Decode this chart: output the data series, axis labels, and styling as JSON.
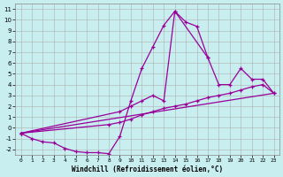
{
  "title": "",
  "xlabel": "Windchill (Refroidissement éolien,°C)",
  "ylabel": "",
  "bg_color": "#c8eef0",
  "grid_color": "#b0b0b0",
  "line_color": "#990099",
  "xlim": [
    -0.5,
    23.5
  ],
  "ylim": [
    -2.5,
    11.5
  ],
  "xticks": [
    0,
    1,
    2,
    3,
    4,
    5,
    6,
    7,
    8,
    9,
    10,
    11,
    12,
    13,
    14,
    15,
    16,
    17,
    18,
    19,
    20,
    21,
    22,
    23
  ],
  "yticks": [
    -2,
    -1,
    0,
    1,
    2,
    3,
    4,
    5,
    6,
    7,
    8,
    9,
    10,
    11
  ],
  "line1_x": [
    0,
    1,
    2,
    3,
    4,
    5,
    6,
    7,
    8,
    9,
    10,
    11,
    12,
    13,
    14,
    15,
    16,
    17
  ],
  "line1_y": [
    -0.5,
    -1.0,
    -1.3,
    -1.4,
    -1.9,
    -2.2,
    -2.3,
    -2.3,
    -2.4,
    -0.8,
    2.5,
    5.5,
    7.5,
    9.5,
    10.8,
    9.8,
    9.4,
    6.5
  ],
  "line2_x": [
    0,
    9,
    10,
    11,
    12,
    13,
    14,
    17,
    18,
    19,
    20,
    21,
    22,
    23
  ],
  "line2_y": [
    -0.5,
    1.5,
    2.0,
    2.5,
    3.0,
    2.5,
    10.8,
    6.5,
    4.0,
    4.0,
    5.5,
    4.5,
    4.5,
    3.2
  ],
  "line3_x": [
    0,
    8,
    9,
    10,
    11,
    12,
    13,
    14,
    15,
    16,
    17,
    18,
    19,
    20,
    21,
    22,
    23
  ],
  "line3_y": [
    -0.5,
    0.3,
    0.5,
    0.8,
    1.2,
    1.5,
    1.8,
    2.0,
    2.2,
    2.5,
    2.8,
    3.0,
    3.2,
    3.5,
    3.8,
    4.0,
    3.2
  ],
  "line4_x": [
    0,
    23
  ],
  "line4_y": [
    -0.5,
    3.2
  ]
}
